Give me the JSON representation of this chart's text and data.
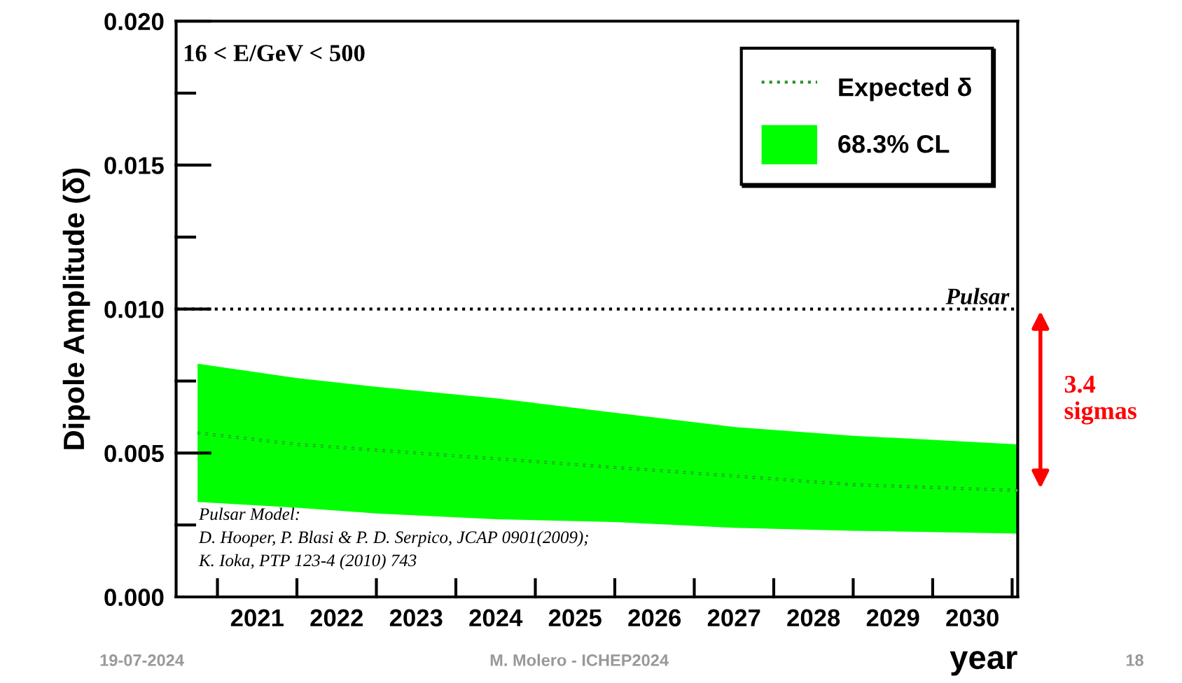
{
  "chart_data": {
    "type": "line",
    "xlabel": "year",
    "ylabel": "Dipole Amplitude (δ)",
    "xlim": [
      2020.48,
      2031.07
    ],
    "ylim": [
      0,
      0.02
    ],
    "xticks": [
      {
        "value": 2021.5,
        "label": "2021"
      },
      {
        "value": 2022.5,
        "label": "2022"
      },
      {
        "value": 2023.5,
        "label": "2023"
      },
      {
        "value": 2024.5,
        "label": "2024"
      },
      {
        "value": 2025.5,
        "label": "2025"
      },
      {
        "value": 2026.5,
        "label": "2026"
      },
      {
        "value": 2027.5,
        "label": "2027"
      },
      {
        "value": 2028.5,
        "label": "2028"
      },
      {
        "value": 2029.5,
        "label": "2029"
      },
      {
        "value": 2030.5,
        "label": "2030"
      }
    ],
    "yticks": [
      {
        "value": 0,
        "label": "0.000"
      },
      {
        "value": 0.005,
        "label": "0.005"
      },
      {
        "value": 0.01,
        "label": "0.010"
      },
      {
        "value": 0.015,
        "label": "0.015"
      },
      {
        "value": 0.02,
        "label": "0.020"
      }
    ],
    "series": [
      {
        "name": "Expected δ",
        "color": "#2f8f2f",
        "line_style": "dotted",
        "x": [
          2020.75,
          2022,
          2023,
          2024.51,
          2026,
          2027.51,
          2029,
          2031.07
        ],
        "values": [
          0.0057,
          0.0053,
          0.0051,
          0.0048,
          0.0045,
          0.0042,
          0.0039,
          0.0037
        ]
      },
      {
        "name": "68.3% CL",
        "color": "#00ff00",
        "x": [
          2020.75,
          2022,
          2023,
          2024.51,
          2026,
          2027.51,
          2029,
          2031.07
        ],
        "values": [
          0.0057,
          0.0053,
          0.0051,
          0.0048,
          0.0045,
          0.0042,
          0.0039,
          0.0037
        ],
        "lower": [
          0.0033,
          0.0031,
          0.0029,
          0.0027,
          0.0026,
          0.0024,
          0.0023,
          0.0022
        ],
        "upper": [
          0.0081,
          0.0076,
          0.0073,
          0.0069,
          0.0064,
          0.0059,
          0.0056,
          0.0053
        ]
      }
    ],
    "ref_lines": [
      {
        "axis": "y",
        "value": 0.01,
        "label": "Pulsar",
        "color": "#000000",
        "line_style": "dotted"
      }
    ],
    "legend": "top right",
    "grid": false,
    "annotations": [
      "16 < E/GeV < 500",
      "Pulsar Model:\nD. Hooper, P. Blasi & P. D. Serpico, JCAP 0901(2009);\nK. Ioka, PTP 123-4 (2010) 743",
      "3.4\nsigmas",
      "19-07-2024",
      "M. Molero - ICHEP2024",
      "18"
    ]
  }
}
